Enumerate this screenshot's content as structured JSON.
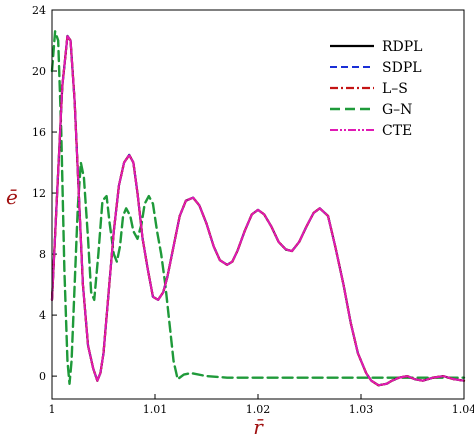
{
  "chart_data": {
    "type": "line",
    "xlabel": "r̄",
    "ylabel": "ē",
    "xlim": [
      1.0,
      1.04
    ],
    "ylim": [
      -1.5,
      24
    ],
    "xticks": [
      1,
      1.01,
      1.02,
      1.03,
      1.04
    ],
    "xtick_labels": [
      "1",
      "1.01",
      "1.02",
      "1.03",
      "1.04"
    ],
    "yticks": [
      0,
      4,
      8,
      12,
      16,
      20,
      24
    ],
    "ytick_labels": [
      "0",
      "4",
      "8",
      "12",
      "16",
      "20",
      "24"
    ],
    "grid": false,
    "legend_position": "top-right",
    "series": [
      {
        "name": "RDPL",
        "color": "#000000",
        "style": "solid",
        "x": [
          1.0,
          1.0005,
          1.001,
          1.0015,
          1.0018,
          1.0022,
          1.0026,
          1.003,
          1.0035,
          1.004,
          1.0044,
          1.0047,
          1.005,
          1.0055,
          1.006,
          1.0065,
          1.007,
          1.0075,
          1.0079,
          1.0083,
          1.0088,
          1.0093,
          1.0098,
          1.0103,
          1.0108,
          1.0112,
          1.0118,
          1.0124,
          1.013,
          1.0137,
          1.0143,
          1.015,
          1.0157,
          1.0163,
          1.017,
          1.0175,
          1.018,
          1.0187,
          1.0194,
          1.02,
          1.0206,
          1.0213,
          1.022,
          1.0227,
          1.0233,
          1.024,
          1.0247,
          1.0254,
          1.026,
          1.0268,
          1.0275,
          1.0283,
          1.029,
          1.0297,
          1.0305,
          1.031,
          1.0317,
          1.0325,
          1.033,
          1.0337,
          1.0345,
          1.0352,
          1.036,
          1.037,
          1.038,
          1.039,
          1.04
        ],
        "y": [
          5.0,
          12.0,
          19.0,
          22.3,
          22.0,
          18.0,
          12.0,
          6.0,
          2.0,
          0.5,
          -0.3,
          0.2,
          1.5,
          5.5,
          9.5,
          12.5,
          14.0,
          14.5,
          14.0,
          12.0,
          9.0,
          7.0,
          5.2,
          5.0,
          5.5,
          6.5,
          8.5,
          10.5,
          11.5,
          11.7,
          11.2,
          10.0,
          8.5,
          7.6,
          7.3,
          7.5,
          8.2,
          9.5,
          10.6,
          10.9,
          10.6,
          9.8,
          8.8,
          8.3,
          8.2,
          8.8,
          9.8,
          10.7,
          11.0,
          10.5,
          8.5,
          6.0,
          3.5,
          1.5,
          0.2,
          -0.3,
          -0.6,
          -0.5,
          -0.3,
          -0.1,
          0.0,
          -0.2,
          -0.3,
          -0.1,
          0.0,
          -0.2,
          -0.3
        ]
      },
      {
        "name": "SDPL",
        "color": "#1a2fd6",
        "style": "dashed",
        "x": [
          1.0,
          1.0005,
          1.001,
          1.0015,
          1.0018,
          1.0022,
          1.0026,
          1.003,
          1.0035,
          1.004,
          1.0044,
          1.0047,
          1.005,
          1.0055,
          1.006,
          1.0065,
          1.007,
          1.0075,
          1.0079,
          1.0083,
          1.0088,
          1.0093,
          1.0098,
          1.0103,
          1.0108,
          1.0112,
          1.0118,
          1.0124,
          1.013,
          1.0137,
          1.0143,
          1.015,
          1.0157,
          1.0163,
          1.017,
          1.0175,
          1.018,
          1.0187,
          1.0194,
          1.02,
          1.0206,
          1.0213,
          1.022,
          1.0227,
          1.0233,
          1.024,
          1.0247,
          1.0254,
          1.026,
          1.0268,
          1.0275,
          1.0283,
          1.029,
          1.0297,
          1.0305,
          1.031,
          1.0317,
          1.0325,
          1.033,
          1.0337,
          1.0345,
          1.0352,
          1.036,
          1.037,
          1.038,
          1.039,
          1.04
        ],
        "y": [
          5.0,
          12.0,
          19.0,
          22.3,
          22.0,
          18.0,
          12.0,
          6.0,
          2.0,
          0.5,
          -0.3,
          0.2,
          1.5,
          5.5,
          9.5,
          12.5,
          14.0,
          14.5,
          14.0,
          12.0,
          9.0,
          7.0,
          5.2,
          5.0,
          5.5,
          6.5,
          8.5,
          10.5,
          11.5,
          11.7,
          11.2,
          10.0,
          8.5,
          7.6,
          7.3,
          7.5,
          8.2,
          9.5,
          10.6,
          10.9,
          10.6,
          9.8,
          8.8,
          8.3,
          8.2,
          8.8,
          9.8,
          10.7,
          11.0,
          10.5,
          8.5,
          6.0,
          3.5,
          1.5,
          0.2,
          -0.3,
          -0.6,
          -0.5,
          -0.3,
          -0.1,
          0.0,
          -0.2,
          -0.3,
          -0.1,
          0.0,
          -0.2,
          -0.3
        ]
      },
      {
        "name": "L–S",
        "color": "#c41414",
        "style": "dashdot",
        "x": [
          1.0,
          1.0005,
          1.001,
          1.0015,
          1.0018,
          1.0022,
          1.0026,
          1.003,
          1.0035,
          1.004,
          1.0044,
          1.0047,
          1.005,
          1.0055,
          1.006,
          1.0065,
          1.007,
          1.0075,
          1.0079,
          1.0083,
          1.0088,
          1.0093,
          1.0098,
          1.0103,
          1.0108,
          1.0112,
          1.0118,
          1.0124,
          1.013,
          1.0137,
          1.0143,
          1.015,
          1.0157,
          1.0163,
          1.017,
          1.0175,
          1.018,
          1.0187,
          1.0194,
          1.02,
          1.0206,
          1.0213,
          1.022,
          1.0227,
          1.0233,
          1.024,
          1.0247,
          1.0254,
          1.026,
          1.0268,
          1.0275,
          1.0283,
          1.029,
          1.0297,
          1.0305,
          1.031,
          1.0317,
          1.0325,
          1.033,
          1.0337,
          1.0345,
          1.0352,
          1.036,
          1.037,
          1.038,
          1.039,
          1.04
        ],
        "y": [
          5.0,
          12.0,
          19.0,
          22.3,
          22.0,
          18.0,
          12.0,
          6.0,
          2.0,
          0.5,
          -0.3,
          0.2,
          1.5,
          5.5,
          9.5,
          12.5,
          14.0,
          14.5,
          14.0,
          12.0,
          9.0,
          7.0,
          5.2,
          5.0,
          5.5,
          6.5,
          8.5,
          10.5,
          11.5,
          11.7,
          11.2,
          10.0,
          8.5,
          7.6,
          7.3,
          7.5,
          8.2,
          9.5,
          10.6,
          10.9,
          10.6,
          9.8,
          8.8,
          8.3,
          8.2,
          8.8,
          9.8,
          10.7,
          11.0,
          10.5,
          8.5,
          6.0,
          3.5,
          1.5,
          0.2,
          -0.3,
          -0.6,
          -0.5,
          -0.3,
          -0.1,
          0.0,
          -0.2,
          -0.3,
          -0.1,
          0.0,
          -0.2,
          -0.3
        ]
      },
      {
        "name": "G–N",
        "color": "#1f9a3a",
        "style": "longdash",
        "x": [
          1.0,
          1.0003,
          1.0006,
          1.0009,
          1.0012,
          1.0015,
          1.0017,
          1.0019,
          1.0022,
          1.0025,
          1.0028,
          1.0031,
          1.0035,
          1.0038,
          1.0041,
          1.0045,
          1.0049,
          1.0053,
          1.0056,
          1.006,
          1.0063,
          1.0066,
          1.0069,
          1.0072,
          1.0076,
          1.0079,
          1.0083,
          1.0087,
          1.009,
          1.0094,
          1.0098,
          1.0102,
          1.0106,
          1.011,
          1.0114,
          1.0118,
          1.0122,
          1.0128,
          1.0135,
          1.015,
          1.017,
          1.02,
          1.025,
          1.03,
          1.035,
          1.04
        ],
        "y": [
          20.0,
          22.6,
          22.0,
          16.0,
          7.0,
          1.0,
          -0.5,
          1.0,
          6.0,
          11.0,
          14.0,
          13.0,
          9.0,
          5.5,
          5.0,
          8.0,
          11.5,
          11.8,
          10.0,
          8.0,
          7.5,
          8.5,
          10.5,
          11.0,
          10.5,
          9.5,
          9.0,
          10.0,
          11.3,
          11.8,
          11.3,
          9.5,
          8.0,
          6.0,
          3.5,
          1.0,
          -0.2,
          0.1,
          0.2,
          0.0,
          -0.1,
          -0.1,
          -0.1,
          -0.1,
          -0.1,
          -0.1
        ]
      },
      {
        "name": "CTE",
        "color": "#e01ab4",
        "style": "dashdotdot",
        "x": [
          1.0,
          1.0005,
          1.001,
          1.0015,
          1.0018,
          1.0022,
          1.0026,
          1.003,
          1.0035,
          1.004,
          1.0044,
          1.0047,
          1.005,
          1.0055,
          1.006,
          1.0065,
          1.007,
          1.0075,
          1.0079,
          1.0083,
          1.0088,
          1.0093,
          1.0098,
          1.0103,
          1.0108,
          1.0112,
          1.0118,
          1.0124,
          1.013,
          1.0137,
          1.0143,
          1.015,
          1.0157,
          1.0163,
          1.017,
          1.0175,
          1.018,
          1.0187,
          1.0194,
          1.02,
          1.0206,
          1.0213,
          1.022,
          1.0227,
          1.0233,
          1.024,
          1.0247,
          1.0254,
          1.026,
          1.0268,
          1.0275,
          1.0283,
          1.029,
          1.0297,
          1.0305,
          1.031,
          1.0317,
          1.0325,
          1.033,
          1.0337,
          1.0345,
          1.0352,
          1.036,
          1.037,
          1.038,
          1.039,
          1.04
        ],
        "y": [
          5.0,
          12.0,
          19.0,
          22.3,
          22.0,
          18.0,
          12.0,
          6.0,
          2.0,
          0.5,
          -0.3,
          0.2,
          1.5,
          5.5,
          9.5,
          12.5,
          14.0,
          14.5,
          14.0,
          12.0,
          9.0,
          7.0,
          5.2,
          5.0,
          5.5,
          6.5,
          8.5,
          10.5,
          11.5,
          11.7,
          11.2,
          10.0,
          8.5,
          7.6,
          7.3,
          7.5,
          8.2,
          9.5,
          10.6,
          10.9,
          10.6,
          9.8,
          8.8,
          8.3,
          8.2,
          8.8,
          9.8,
          10.7,
          11.0,
          10.5,
          8.5,
          6.0,
          3.5,
          1.5,
          0.2,
          -0.3,
          -0.6,
          -0.5,
          -0.3,
          -0.1,
          0.0,
          -0.2,
          -0.3,
          -0.1,
          0.0,
          -0.2,
          -0.3
        ]
      }
    ]
  }
}
